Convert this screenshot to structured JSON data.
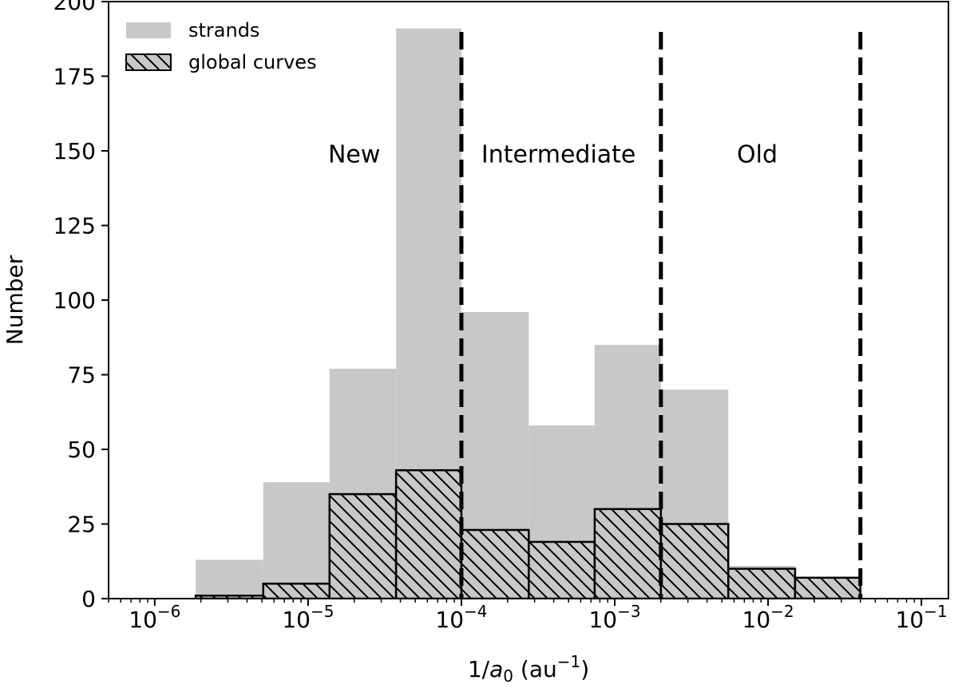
{
  "chart_data": {
    "type": "bar",
    "subtype": "histogram",
    "xscale": "log",
    "xlabel_prefix": "1/",
    "xlabel_var": "a",
    "xlabel_sub": "0",
    "xlabel_unit_open": " (au",
    "xlabel_unit_sup": "−1",
    "xlabel_unit_close": ")",
    "ylabel": "Number",
    "xlim": [
      5e-07,
      0.15
    ],
    "ylim": [
      0,
      200
    ],
    "yticks": [
      0,
      25,
      50,
      75,
      100,
      125,
      150,
      175,
      200
    ],
    "xticks": [
      {
        "value": 1e-06,
        "base": "10",
        "exp": "−6"
      },
      {
        "value": 1e-05,
        "base": "10",
        "exp": "−5"
      },
      {
        "value": 0.0001,
        "base": "10",
        "exp": "−4"
      },
      {
        "value": 0.001,
        "base": "10",
        "exp": "−3"
      },
      {
        "value": 0.01,
        "base": "10",
        "exp": "−2"
      },
      {
        "value": 0.1,
        "base": "10",
        "exp": "−1"
      }
    ],
    "bin_edges": [
      1.85e-06,
      5.1e-06,
      1.38e-05,
      3.75e-05,
      0.0001,
      0.000275,
      0.00074,
      0.002,
      0.0055,
      0.015,
      0.04
    ],
    "series": [
      {
        "name": "strands",
        "color": "#c8c8c8",
        "values": [
          13,
          39,
          77,
          191,
          96,
          58,
          85,
          70,
          11,
          4
        ]
      },
      {
        "name": "global curves",
        "color": "#c8c8c8",
        "hatch": true,
        "values": [
          1,
          5,
          35,
          43,
          23,
          19,
          30,
          25,
          10,
          7
        ]
      }
    ],
    "vlines": [
      0.0001,
      0.002,
      0.04
    ],
    "annotations": [
      {
        "text": "New",
        "x": 2e-05,
        "y": 149
      },
      {
        "text": "Intermediate",
        "x": 0.00043,
        "y": 149
      },
      {
        "text": "Old",
        "x": 0.0085,
        "y": 149
      }
    ],
    "legend": "top-left",
    "grid": false
  }
}
